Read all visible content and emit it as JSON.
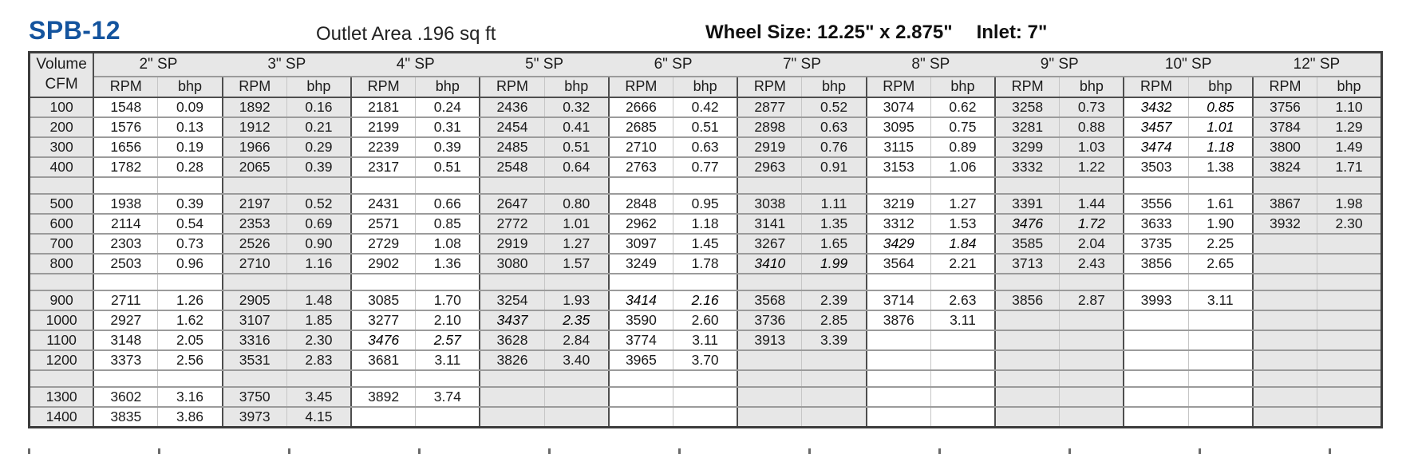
{
  "header": {
    "model": "SPB-12",
    "outlet_area": "Outlet Area .196 sq ft",
    "wheel_size": "Wheel Size: 12.25\" x 2.875\"",
    "inlet": "Inlet: 7\""
  },
  "colors": {
    "model_blue": "#14549e",
    "stripe_gray": "#e7e7e7"
  },
  "table": {
    "volume_header": {
      "line1": "Volume",
      "line2": "CFM"
    },
    "sp_columns": [
      "2\" SP",
      "3\" SP",
      "4\" SP",
      "5\" SP",
      "6\" SP",
      "7\" SP",
      "8\" SP",
      "9\" SP",
      "10\" SP",
      "12\" SP"
    ],
    "sub_headers": [
      "RPM",
      "bhp"
    ],
    "rows": [
      {
        "cfm": "100",
        "cells": [
          {
            "r": "1548",
            "b": "0.09"
          },
          {
            "r": "1892",
            "b": "0.16"
          },
          {
            "r": "2181",
            "b": "0.24"
          },
          {
            "r": "2436",
            "b": "0.32"
          },
          {
            "r": "2666",
            "b": "0.42"
          },
          {
            "r": "2877",
            "b": "0.52"
          },
          {
            "r": "3074",
            "b": "0.62"
          },
          {
            "r": "3258",
            "b": "0.73"
          },
          {
            "r": "3432",
            "b": "0.85",
            "p": true
          },
          {
            "r": "3756",
            "b": "1.10"
          }
        ]
      },
      {
        "cfm": "200",
        "cells": [
          {
            "r": "1576",
            "b": "0.13"
          },
          {
            "r": "1912",
            "b": "0.21"
          },
          {
            "r": "2199",
            "b": "0.31"
          },
          {
            "r": "2454",
            "b": "0.41"
          },
          {
            "r": "2685",
            "b": "0.51"
          },
          {
            "r": "2898",
            "b": "0.63"
          },
          {
            "r": "3095",
            "b": "0.75"
          },
          {
            "r": "3281",
            "b": "0.88"
          },
          {
            "r": "3457",
            "b": "1.01",
            "p": true
          },
          {
            "r": "3784",
            "b": "1.29"
          }
        ]
      },
      {
        "cfm": "300",
        "cells": [
          {
            "r": "1656",
            "b": "0.19"
          },
          {
            "r": "1966",
            "b": "0.29"
          },
          {
            "r": "2239",
            "b": "0.39"
          },
          {
            "r": "2485",
            "b": "0.51"
          },
          {
            "r": "2710",
            "b": "0.63"
          },
          {
            "r": "2919",
            "b": "0.76"
          },
          {
            "r": "3115",
            "b": "0.89"
          },
          {
            "r": "3299",
            "b": "1.03"
          },
          {
            "r": "3474",
            "b": "1.18",
            "p": true
          },
          {
            "r": "3800",
            "b": "1.49"
          }
        ]
      },
      {
        "cfm": "400",
        "cells": [
          {
            "r": "1782",
            "b": "0.28"
          },
          {
            "r": "2065",
            "b": "0.39"
          },
          {
            "r": "2317",
            "b": "0.51"
          },
          {
            "r": "2548",
            "b": "0.64"
          },
          {
            "r": "2763",
            "b": "0.77"
          },
          {
            "r": "2963",
            "b": "0.91"
          },
          {
            "r": "3153",
            "b": "1.06"
          },
          {
            "r": "3332",
            "b": "1.22"
          },
          {
            "r": "3503",
            "b": "1.38"
          },
          {
            "r": "3824",
            "b": "1.71"
          }
        ]
      },
      {
        "spacer": true
      },
      {
        "cfm": "500",
        "cells": [
          {
            "r": "1938",
            "b": "0.39"
          },
          {
            "r": "2197",
            "b": "0.52"
          },
          {
            "r": "2431",
            "b": "0.66"
          },
          {
            "r": "2647",
            "b": "0.80"
          },
          {
            "r": "2848",
            "b": "0.95"
          },
          {
            "r": "3038",
            "b": "1.11"
          },
          {
            "r": "3219",
            "b": "1.27"
          },
          {
            "r": "3391",
            "b": "1.44"
          },
          {
            "r": "3556",
            "b": "1.61"
          },
          {
            "r": "3867",
            "b": "1.98"
          }
        ]
      },
      {
        "cfm": "600",
        "cells": [
          {
            "r": "2114",
            "b": "0.54"
          },
          {
            "r": "2353",
            "b": "0.69"
          },
          {
            "r": "2571",
            "b": "0.85"
          },
          {
            "r": "2772",
            "b": "1.01"
          },
          {
            "r": "2962",
            "b": "1.18"
          },
          {
            "r": "3141",
            "b": "1.35"
          },
          {
            "r": "3312",
            "b": "1.53"
          },
          {
            "r": "3476",
            "b": "1.72",
            "p": true
          },
          {
            "r": "3633",
            "b": "1.90"
          },
          {
            "r": "3932",
            "b": "2.30"
          }
        ]
      },
      {
        "cfm": "700",
        "cells": [
          {
            "r": "2303",
            "b": "0.73"
          },
          {
            "r": "2526",
            "b": "0.90"
          },
          {
            "r": "2729",
            "b": "1.08"
          },
          {
            "r": "2919",
            "b": "1.27"
          },
          {
            "r": "3097",
            "b": "1.45"
          },
          {
            "r": "3267",
            "b": "1.65"
          },
          {
            "r": "3429",
            "b": "1.84",
            "p": true
          },
          {
            "r": "3585",
            "b": "2.04"
          },
          {
            "r": "3735",
            "b": "2.25"
          },
          null
        ]
      },
      {
        "cfm": "800",
        "cells": [
          {
            "r": "2503",
            "b": "0.96"
          },
          {
            "r": "2710",
            "b": "1.16"
          },
          {
            "r": "2902",
            "b": "1.36"
          },
          {
            "r": "3080",
            "b": "1.57"
          },
          {
            "r": "3249",
            "b": "1.78"
          },
          {
            "r": "3410",
            "b": "1.99",
            "p": true
          },
          {
            "r": "3564",
            "b": "2.21"
          },
          {
            "r": "3713",
            "b": "2.43"
          },
          {
            "r": "3856",
            "b": "2.65"
          },
          null
        ]
      },
      {
        "spacer": true
      },
      {
        "cfm": "900",
        "cells": [
          {
            "r": "2711",
            "b": "1.26"
          },
          {
            "r": "2905",
            "b": "1.48"
          },
          {
            "r": "3085",
            "b": "1.70"
          },
          {
            "r": "3254",
            "b": "1.93"
          },
          {
            "r": "3414",
            "b": "2.16",
            "p": true
          },
          {
            "r": "3568",
            "b": "2.39"
          },
          {
            "r": "3714",
            "b": "2.63"
          },
          {
            "r": "3856",
            "b": "2.87"
          },
          {
            "r": "3993",
            "b": "3.11"
          },
          null
        ]
      },
      {
        "cfm": "1000",
        "cells": [
          {
            "r": "2927",
            "b": "1.62"
          },
          {
            "r": "3107",
            "b": "1.85"
          },
          {
            "r": "3277",
            "b": "2.10"
          },
          {
            "r": "3437",
            "b": "2.35",
            "p": true
          },
          {
            "r": "3590",
            "b": "2.60"
          },
          {
            "r": "3736",
            "b": "2.85"
          },
          {
            "r": "3876",
            "b": "3.11"
          },
          null,
          null,
          null
        ]
      },
      {
        "cfm": "1100",
        "cells": [
          {
            "r": "3148",
            "b": "2.05"
          },
          {
            "r": "3316",
            "b": "2.30"
          },
          {
            "r": "3476",
            "b": "2.57",
            "p": true
          },
          {
            "r": "3628",
            "b": "2.84"
          },
          {
            "r": "3774",
            "b": "3.11"
          },
          {
            "r": "3913",
            "b": "3.39"
          },
          null,
          null,
          null,
          null
        ]
      },
      {
        "cfm": "1200",
        "cells": [
          {
            "r": "3373",
            "b": "2.56"
          },
          {
            "r": "3531",
            "b": "2.83"
          },
          {
            "r": "3681",
            "b": "3.11"
          },
          {
            "r": "3826",
            "b": "3.40"
          },
          {
            "r": "3965",
            "b": "3.70"
          },
          null,
          null,
          null,
          null,
          null
        ]
      },
      {
        "spacer": true
      },
      {
        "cfm": "1300",
        "cells": [
          {
            "r": "3602",
            "b": "3.16"
          },
          {
            "r": "3750",
            "b": "3.45"
          },
          {
            "r": "3892",
            "b": "3.74"
          },
          null,
          null,
          null,
          null,
          null,
          null,
          null
        ]
      },
      {
        "cfm": "1400",
        "cells": [
          {
            "r": "3835",
            "b": "3.86"
          },
          {
            "r": "3973",
            "b": "4.15"
          },
          null,
          null,
          null,
          null,
          null,
          null,
          null,
          null
        ]
      }
    ]
  }
}
